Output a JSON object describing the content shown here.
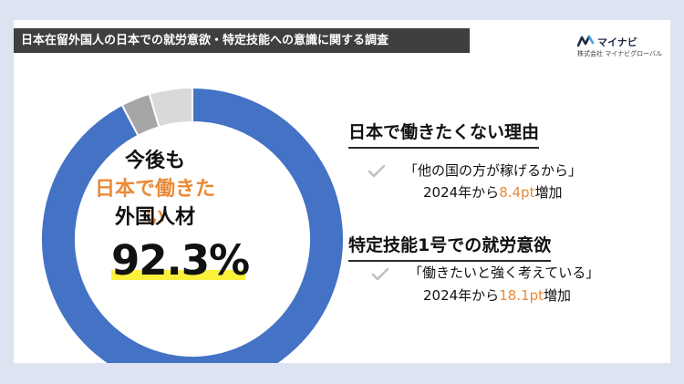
{
  "banner": {
    "title": "日本在留外国人の日本での就労意欲・特定技能への意識に関する調査"
  },
  "logo": {
    "name": "マイナビ",
    "sub": "株式会社 マイナビグローバル",
    "icon": "mynavi-logo-icon"
  },
  "colors": {
    "primary": "#4472c4",
    "gray_dark": "#a6a6a6",
    "gray_light": "#d9d9d9",
    "accent": "#ea8a37",
    "highlight": "#fbf03c"
  },
  "chart_data": {
    "type": "pie",
    "variant": "donut",
    "values": [
      92.3,
      3.1,
      4.6
    ],
    "colors": [
      "#4472c4",
      "#a6a6a6",
      "#d9d9d9"
    ],
    "center_text": {
      "line1": "今後も",
      "line2": "日本で働きたい",
      "line3": "外国人材",
      "value": "92.3%"
    }
  },
  "sections": [
    {
      "heading": "日本で働きたくない理由",
      "quote": "「他の国の方が稼げるから」",
      "detail_prefix": "2024年から",
      "detail_value": "8.4pt",
      "detail_suffix": "増加",
      "icon": "check-icon"
    },
    {
      "heading": "特定技能1号での就労意欲",
      "quote": "「働きたいと強く考えている」",
      "detail_prefix": "2024年から",
      "detail_value": "18.1pt",
      "detail_suffix": "増加",
      "icon": "check-icon"
    }
  ]
}
